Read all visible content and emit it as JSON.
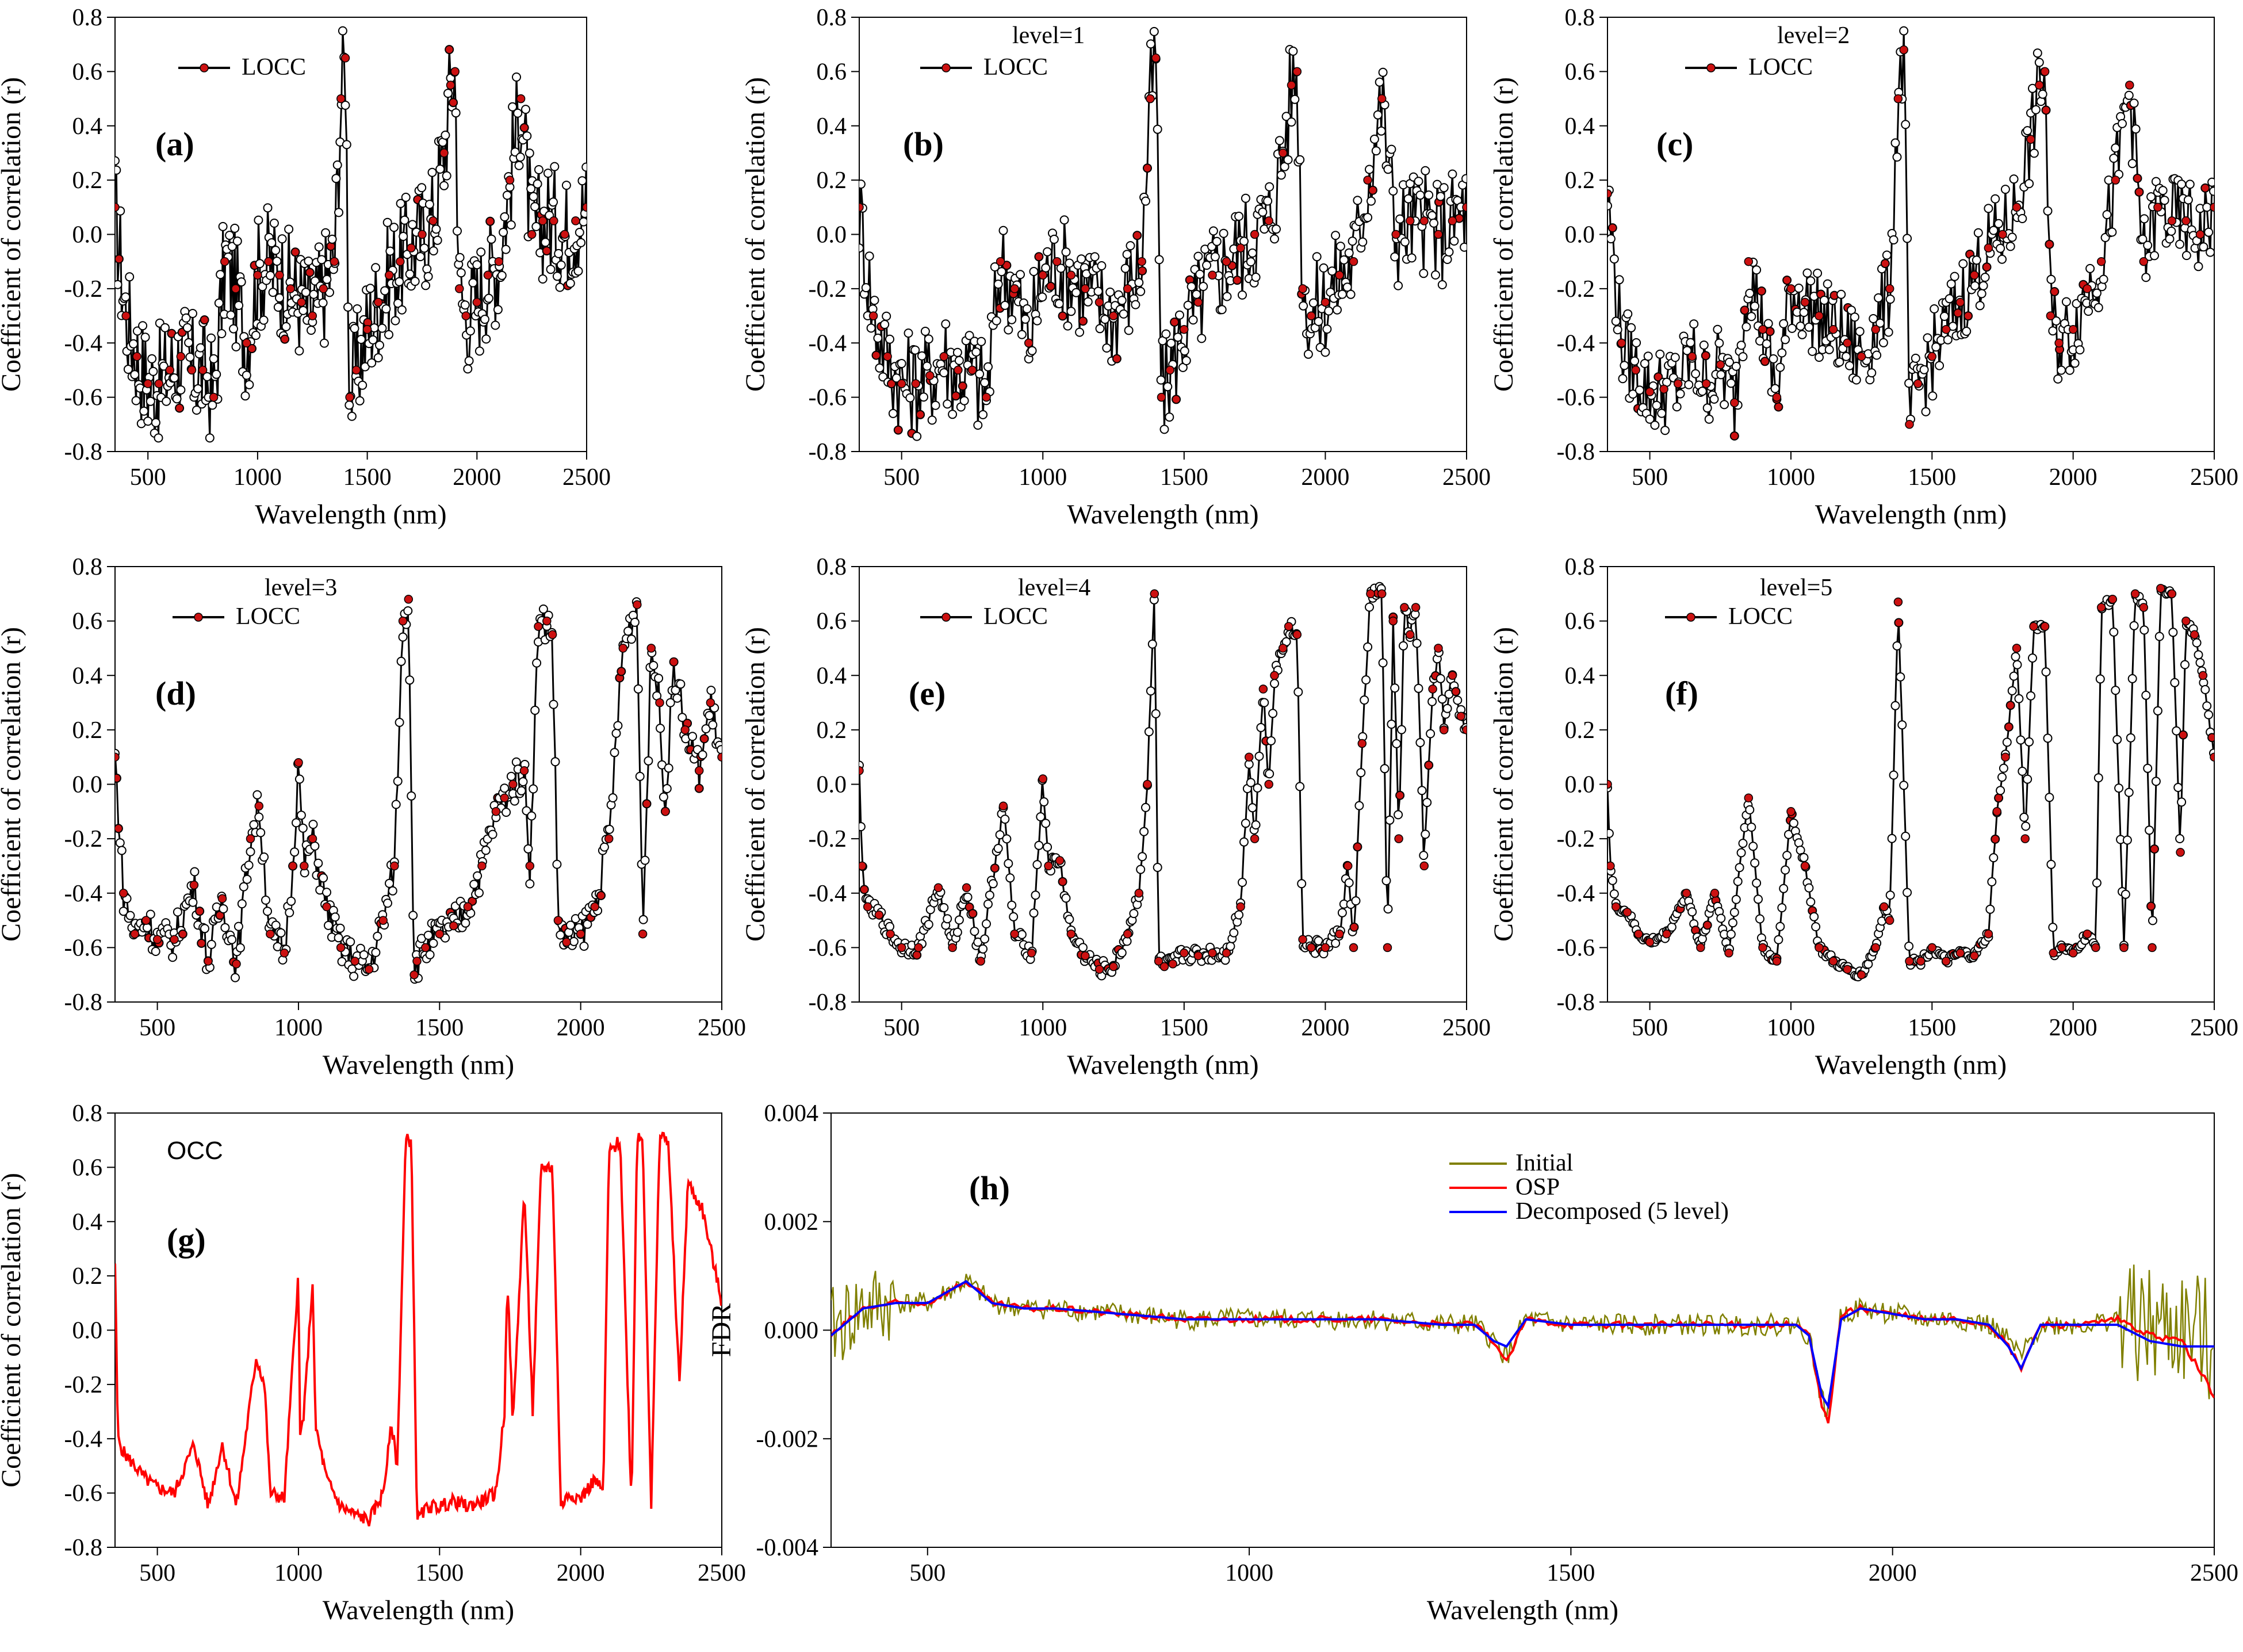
{
  "figure": {
    "background": "#ffffff"
  },
  "colors": {
    "line": "#000000",
    "marker_fill": "#ffffff",
    "highlight": "#cc1111",
    "occ": "#ff0000",
    "initial": "#808000",
    "osp": "#ff0000",
    "decomposed": "#0000ff"
  },
  "chart_data": [
    {
      "id": "a",
      "panel_label": "(a)",
      "type": "line",
      "series_style": "markers",
      "title": "",
      "legend": [
        "LOCC"
      ],
      "xlabel": "Wavelength (nm)",
      "ylabel": "Coefficient of correlation (r)",
      "xlim": [
        350,
        2500
      ],
      "ylim": [
        -0.8,
        0.8
      ],
      "xticks": [
        500,
        1000,
        1500,
        2000,
        2500
      ],
      "yticks": [
        -0.8,
        -0.6,
        -0.4,
        -0.2,
        0.0,
        0.2,
        0.4,
        0.6,
        0.8
      ],
      "level": 0,
      "x": [
        350,
        400,
        450,
        500,
        550,
        600,
        650,
        700,
        750,
        800,
        850,
        900,
        950,
        1000,
        1050,
        1100,
        1150,
        1200,
        1250,
        1300,
        1350,
        1380,
        1400,
        1420,
        1450,
        1500,
        1550,
        1600,
        1650,
        1700,
        1750,
        1800,
        1850,
        1880,
        1900,
        1920,
        1950,
        2000,
        2050,
        2100,
        2150,
        2200,
        2250,
        2300,
        2350,
        2400,
        2450,
        2500
      ],
      "y": [
        0.1,
        -0.3,
        -0.45,
        -0.55,
        -0.55,
        -0.5,
        -0.45,
        -0.5,
        -0.5,
        -0.6,
        -0.1,
        -0.2,
        -0.4,
        -0.15,
        -0.1,
        -0.15,
        -0.2,
        -0.25,
        -0.3,
        -0.2,
        -0.1,
        0.5,
        0.65,
        -0.6,
        -0.5,
        -0.35,
        -0.25,
        -0.15,
        -0.1,
        -0.05,
        0.0,
        0.05,
        0.3,
        0.55,
        0.6,
        -0.2,
        -0.3,
        -0.25,
        -0.15,
        -0.1,
        0.2,
        0.5,
        0.0,
        0.05,
        0.05,
        0.0,
        0.05,
        0.1
      ]
    },
    {
      "id": "b",
      "panel_label": "(b)",
      "type": "line",
      "series_style": "markers",
      "title": "",
      "legend_title": "level=1",
      "legend": [
        "LOCC"
      ],
      "xlabel": "Wavelength (nm)",
      "ylabel": "Coefficient of correlation (r)",
      "xlim": [
        350,
        2500
      ],
      "ylim": [
        -0.8,
        0.8
      ],
      "xticks": [
        500,
        1000,
        1500,
        2000,
        2500
      ],
      "yticks": [
        -0.8,
        -0.6,
        -0.4,
        -0.2,
        0.0,
        0.2,
        0.4,
        0.6,
        0.8
      ],
      "level": 1,
      "x": [
        350,
        400,
        450,
        500,
        550,
        600,
        650,
        700,
        750,
        800,
        850,
        900,
        950,
        1000,
        1050,
        1100,
        1150,
        1200,
        1250,
        1300,
        1350,
        1380,
        1400,
        1420,
        1450,
        1500,
        1550,
        1600,
        1650,
        1700,
        1750,
        1800,
        1850,
        1880,
        1900,
        1920,
        1950,
        2000,
        2050,
        2100,
        2150,
        2200,
        2250,
        2300,
        2350,
        2400,
        2450,
        2500
      ],
      "y": [
        0.1,
        -0.3,
        -0.45,
        -0.55,
        -0.55,
        -0.52,
        -0.45,
        -0.5,
        -0.5,
        -0.6,
        -0.1,
        -0.2,
        -0.4,
        -0.15,
        -0.1,
        -0.15,
        -0.2,
        -0.25,
        -0.3,
        -0.2,
        -0.1,
        0.5,
        0.65,
        -0.6,
        -0.5,
        -0.35,
        -0.25,
        -0.15,
        -0.1,
        -0.05,
        0.0,
        0.05,
        0.3,
        0.55,
        0.6,
        -0.2,
        -0.3,
        -0.25,
        -0.15,
        -0.1,
        0.2,
        0.5,
        0.0,
        0.05,
        0.05,
        0.0,
        0.05,
        0.1
      ]
    },
    {
      "id": "c",
      "panel_label": "(c)",
      "type": "line",
      "series_style": "markers",
      "title": "",
      "legend_title": "level=2",
      "legend": [
        "LOCC"
      ],
      "xlabel": "Wavelength (nm)",
      "ylabel": "Coefficient of correlation (r)",
      "xlim": [
        350,
        2500
      ],
      "ylim": [
        -0.8,
        0.8
      ],
      "xticks": [
        500,
        1000,
        1500,
        2000,
        2500
      ],
      "yticks": [
        -0.8,
        -0.6,
        -0.4,
        -0.2,
        0.0,
        0.2,
        0.4,
        0.6,
        0.8
      ],
      "level": 2,
      "x": [
        350,
        400,
        450,
        500,
        550,
        600,
        650,
        700,
        750,
        800,
        850,
        900,
        950,
        1000,
        1050,
        1100,
        1150,
        1200,
        1250,
        1300,
        1350,
        1380,
        1400,
        1420,
        1450,
        1500,
        1550,
        1600,
        1650,
        1700,
        1750,
        1800,
        1850,
        1880,
        1900,
        1920,
        1950,
        2000,
        2050,
        2100,
        2150,
        2200,
        2250,
        2300,
        2350,
        2400,
        2450,
        2500
      ],
      "y": [
        0.15,
        -0.4,
        -0.5,
        -0.58,
        -0.57,
        -0.55,
        -0.45,
        -0.55,
        -0.48,
        -0.62,
        -0.1,
        -0.35,
        -0.6,
        -0.2,
        -0.25,
        -0.3,
        -0.35,
        -0.4,
        -0.45,
        -0.35,
        -0.2,
        0.5,
        0.68,
        -0.7,
        -0.55,
        -0.45,
        -0.35,
        -0.25,
        -0.15,
        -0.05,
        0.0,
        0.1,
        0.35,
        0.55,
        0.6,
        -0.3,
        -0.4,
        -0.35,
        -0.2,
        -0.1,
        0.2,
        0.55,
        -0.1,
        0.1,
        0.05,
        0.05,
        0.0,
        0.1
      ]
    },
    {
      "id": "d",
      "panel_label": "(d)",
      "type": "line",
      "series_style": "markers",
      "title": "",
      "legend_title": "level=3",
      "legend": [
        "LOCC"
      ],
      "xlabel": "Wavelength (nm)",
      "ylabel": "Coefficient of correlation (r)",
      "xlim": [
        350,
        2500
      ],
      "ylim": [
        -0.8,
        0.8
      ],
      "xticks": [
        500,
        1000,
        1500,
        2000,
        2500
      ],
      "yticks": [
        -0.8,
        -0.6,
        -0.4,
        -0.2,
        0.0,
        0.2,
        0.4,
        0.6,
        0.8
      ],
      "level": 3,
      "x": [
        350,
        380,
        420,
        460,
        500,
        560,
        630,
        680,
        730,
        780,
        830,
        860,
        900,
        950,
        980,
        1000,
        1020,
        1050,
        1100,
        1150,
        1200,
        1250,
        1300,
        1340,
        1370,
        1390,
        1410,
        1420,
        1450,
        1500,
        1550,
        1600,
        1650,
        1700,
        1730,
        1760,
        1800,
        1820,
        1850,
        1880,
        1900,
        1920,
        1950,
        2000,
        2050,
        2100,
        2150,
        2200,
        2220,
        2250,
        2280,
        2300,
        2330,
        2370,
        2420,
        2460,
        2500
      ],
      "y": [
        0.1,
        -0.4,
        -0.55,
        -0.5,
        -0.57,
        -0.57,
        -0.37,
        -0.65,
        -0.42,
        -0.66,
        -0.2,
        -0.08,
        -0.55,
        -0.62,
        -0.3,
        0.08,
        -0.3,
        -0.2,
        -0.45,
        -0.6,
        -0.65,
        -0.68,
        -0.5,
        -0.3,
        0.6,
        0.68,
        -0.7,
        -0.65,
        -0.6,
        -0.55,
        -0.52,
        -0.45,
        -0.3,
        -0.1,
        -0.05,
        0.0,
        0.05,
        -0.3,
        0.58,
        0.6,
        0.55,
        -0.5,
        -0.58,
        -0.55,
        -0.45,
        -0.2,
        0.5,
        0.66,
        -0.55,
        0.5,
        0.3,
        -0.1,
        0.45,
        0.2,
        0.05,
        0.3,
        0.1
      ]
    },
    {
      "id": "e",
      "panel_label": "(e)",
      "type": "line",
      "series_style": "markers",
      "title": "",
      "legend_title": "level=4",
      "legend": [
        "LOCC"
      ],
      "xlabel": "Wavelength (nm)",
      "ylabel": "Coefficient of correlation (r)",
      "xlim": [
        350,
        2500
      ],
      "ylim": [
        -0.8,
        0.8
      ],
      "xticks": [
        500,
        1000,
        1500,
        2000,
        2500
      ],
      "yticks": [
        -0.8,
        -0.6,
        -0.4,
        -0.2,
        0.0,
        0.2,
        0.4,
        0.6,
        0.8
      ],
      "level": 4,
      "x": [
        350,
        360,
        380,
        420,
        460,
        500,
        560,
        630,
        680,
        730,
        780,
        860,
        900,
        960,
        1000,
        1020,
        1060,
        1100,
        1150,
        1200,
        1250,
        1300,
        1340,
        1370,
        1395,
        1410,
        1430,
        1460,
        1500,
        1550,
        1600,
        1650,
        1700,
        1730,
        1750,
        1780,
        1800,
        1820,
        1850,
        1870,
        1900,
        1920,
        1950,
        2000,
        2050,
        2080,
        2100,
        2130,
        2160,
        2200,
        2220,
        2240,
        2260,
        2280,
        2300,
        2320,
        2350,
        2380,
        2400,
        2420,
        2450,
        2480,
        2500
      ],
      "y": [
        0.05,
        -0.3,
        -0.45,
        -0.48,
        -0.55,
        -0.6,
        -0.6,
        -0.38,
        -0.6,
        -0.38,
        -0.65,
        -0.08,
        -0.55,
        -0.62,
        0.02,
        -0.3,
        -0.28,
        -0.55,
        -0.63,
        -0.68,
        -0.67,
        -0.55,
        -0.4,
        0.0,
        0.7,
        -0.65,
        -0.67,
        -0.66,
        -0.62,
        -0.63,
        -0.62,
        -0.62,
        -0.45,
        0.1,
        -0.2,
        0.35,
        0.0,
        0.4,
        0.5,
        0.58,
        0.55,
        -0.57,
        -0.6,
        -0.6,
        -0.55,
        -0.3,
        -0.6,
        0.15,
        0.7,
        0.7,
        -0.6,
        0.6,
        -0.2,
        0.65,
        0.55,
        0.65,
        -0.3,
        0.35,
        0.5,
        0.2,
        0.4,
        0.25,
        0.2
      ]
    },
    {
      "id": "f",
      "panel_label": "(f)",
      "type": "line",
      "series_style": "markers",
      "title": "",
      "legend_title": "level=5",
      "legend": [
        "LOCC"
      ],
      "xlabel": "Wavelength (nm)",
      "ylabel": "Coefficient of correlation (r)",
      "xlim": [
        350,
        2500
      ],
      "ylim": [
        -0.8,
        0.8
      ],
      "xticks": [
        500,
        1000,
        1500,
        2000,
        2500
      ],
      "yticks": [
        -0.8,
        -0.6,
        -0.4,
        -0.2,
        0.0,
        0.2,
        0.4,
        0.6,
        0.8
      ],
      "level": 5,
      "x": [
        350,
        360,
        380,
        420,
        460,
        500,
        560,
        630,
        680,
        730,
        780,
        850,
        900,
        950,
        1000,
        1050,
        1100,
        1150,
        1200,
        1250,
        1300,
        1330,
        1350,
        1380,
        1420,
        1460,
        1500,
        1550,
        1600,
        1650,
        1700,
        1730,
        1760,
        1800,
        1830,
        1860,
        1900,
        1930,
        1960,
        2000,
        2050,
        2080,
        2100,
        2140,
        2180,
        2220,
        2250,
        2280,
        2310,
        2350,
        2380,
        2400,
        2430,
        2460,
        2500
      ],
      "y": [
        0.0,
        -0.3,
        -0.45,
        -0.47,
        -0.55,
        -0.58,
        -0.55,
        -0.4,
        -0.6,
        -0.4,
        -0.62,
        -0.05,
        -0.6,
        -0.65,
        -0.1,
        -0.3,
        -0.6,
        -0.65,
        -0.68,
        -0.7,
        -0.6,
        -0.45,
        -0.5,
        0.67,
        -0.65,
        -0.65,
        -0.6,
        -0.65,
        -0.62,
        -0.63,
        -0.55,
        -0.1,
        0.1,
        0.5,
        -0.2,
        0.58,
        0.58,
        -0.62,
        -0.6,
        -0.62,
        -0.55,
        -0.6,
        0.65,
        0.68,
        -0.6,
        0.7,
        0.65,
        -0.6,
        0.72,
        0.7,
        -0.25,
        0.6,
        0.55,
        0.4,
        0.1
      ]
    },
    {
      "id": "g",
      "panel_label": "(g)",
      "type": "line",
      "series_style": "line",
      "title": "",
      "legend": [],
      "note": "OCC",
      "xlabel": "Wavelength (nm)",
      "ylabel": "Coefficient of correlation (r)",
      "xlim": [
        350,
        2500
      ],
      "ylim": [
        -0.8,
        0.8
      ],
      "xticks": [
        500,
        1000,
        1500,
        2000,
        2500
      ],
      "yticks": [
        -0.8,
        -0.6,
        -0.4,
        -0.2,
        0.0,
        0.2,
        0.4,
        0.6,
        0.8
      ],
      "x": [
        350,
        360,
        380,
        420,
        460,
        500,
        560,
        630,
        680,
        730,
        780,
        850,
        880,
        900,
        950,
        1000,
        1005,
        1020,
        1050,
        1060,
        1100,
        1150,
        1200,
        1250,
        1300,
        1330,
        1350,
        1380,
        1400,
        1420,
        1460,
        1500,
        1550,
        1600,
        1650,
        1700,
        1730,
        1740,
        1760,
        1800,
        1830,
        1860,
        1900,
        1930,
        1960,
        2000,
        2050,
        2080,
        2100,
        2140,
        2180,
        2200,
        2220,
        2250,
        2280,
        2310,
        2350,
        2380,
        2400,
        2430,
        2460,
        2500
      ],
      "y": [
        0.25,
        -0.4,
        -0.45,
        -0.5,
        -0.55,
        -0.58,
        -0.6,
        -0.42,
        -0.65,
        -0.42,
        -0.65,
        -0.1,
        -0.2,
        -0.6,
        -0.62,
        0.22,
        -0.4,
        -0.3,
        0.18,
        -0.35,
        -0.55,
        -0.65,
        -0.68,
        -0.7,
        -0.6,
        -0.35,
        -0.5,
        0.7,
        0.7,
        -0.7,
        -0.65,
        -0.65,
        -0.63,
        -0.65,
        -0.63,
        -0.6,
        -0.3,
        0.2,
        -0.35,
        0.52,
        -0.3,
        0.6,
        0.6,
        -0.65,
        -0.6,
        -0.62,
        -0.55,
        -0.6,
        0.65,
        0.7,
        -0.65,
        0.72,
        0.7,
        -0.65,
        0.72,
        0.7,
        -0.2,
        0.55,
        0.5,
        0.45,
        0.3,
        0.1
      ]
    },
    {
      "id": "h",
      "panel_label": "(h)",
      "type": "line",
      "series_style": "line",
      "title": "",
      "xlabel": "Wavelength (nm)",
      "ylabel": "FDR",
      "xlim": [
        350,
        2500
      ],
      "ylim": [
        -0.004,
        0.004
      ],
      "xticks": [
        500,
        1000,
        1500,
        2000,
        2500
      ],
      "yticks": [
        -0.004,
        -0.002,
        0.0,
        0.002,
        0.004
      ],
      "ytick_labels": [
        "-0.004",
        "-0.002",
        "0.000",
        "0.002",
        "0.004"
      ],
      "x": [
        350,
        400,
        450,
        500,
        560,
        600,
        650,
        700,
        800,
        900,
        1000,
        1100,
        1200,
        1300,
        1350,
        1380,
        1400,
        1430,
        1500,
        1600,
        1700,
        1800,
        1850,
        1870,
        1890,
        1900,
        1920,
        1950,
        2000,
        2050,
        2100,
        2150,
        2180,
        2200,
        2230,
        2300,
        2350,
        2400,
        2450,
        2500
      ],
      "series": [
        {
          "name": "Initial",
          "color": "#808000",
          "noise": 0.0016,
          "values": [
            0.0,
            0.0004,
            0.0005,
            0.0005,
            0.0009,
            0.0005,
            0.0004,
            0.0004,
            0.0003,
            0.0002,
            0.0002,
            0.0002,
            0.0002,
            0.0001,
            0.0001,
            -0.0002,
            -0.0005,
            0.0002,
            0.0001,
            0.0001,
            0.0001,
            0.0001,
            0.0001,
            -0.0001,
            -0.0013,
            -0.0015,
            0.0003,
            0.0004,
            0.0003,
            0.0002,
            0.0002,
            0.0001,
            -0.0002,
            -0.0005,
            0.0001,
            0.0001,
            0.0002,
            0.0,
            0.0,
            -0.0002
          ]
        },
        {
          "name": "OSP",
          "color": "#ff0000",
          "noise": 0.0,
          "values": [
            -0.0001,
            0.0004,
            0.0005,
            0.0005,
            0.0009,
            0.0005,
            0.0004,
            0.0004,
            0.0003,
            0.0002,
            0.0002,
            0.0002,
            0.0002,
            0.0001,
            0.0001,
            -0.0002,
            -0.0006,
            0.0002,
            0.0001,
            0.0001,
            0.0001,
            0.0001,
            0.0001,
            -0.0001,
            -0.0014,
            -0.0017,
            0.0003,
            0.0004,
            0.0003,
            0.0002,
            0.0002,
            0.0001,
            -0.0003,
            -0.0007,
            0.0001,
            0.0001,
            0.0002,
            -0.0001,
            -0.0002,
            -0.0012
          ]
        },
        {
          "name": "Decomposed (5 level)",
          "color": "#0000ff",
          "noise": 0.0,
          "values": [
            -0.0001,
            0.0004,
            0.0005,
            0.0005,
            0.0009,
            0.0005,
            0.0004,
            0.0004,
            0.0003,
            0.0002,
            0.0002,
            0.0002,
            0.0002,
            0.0001,
            0.0001,
            -0.0002,
            -0.0003,
            0.0002,
            0.0001,
            0.0001,
            0.0001,
            0.0001,
            0.0001,
            -0.0001,
            -0.0012,
            -0.0014,
            0.0002,
            0.0004,
            0.0003,
            0.0002,
            0.0002,
            0.0001,
            -0.0003,
            -0.0007,
            0.0001,
            0.0001,
            0.0001,
            -0.0002,
            -0.0003,
            -0.0003
          ]
        }
      ]
    }
  ]
}
